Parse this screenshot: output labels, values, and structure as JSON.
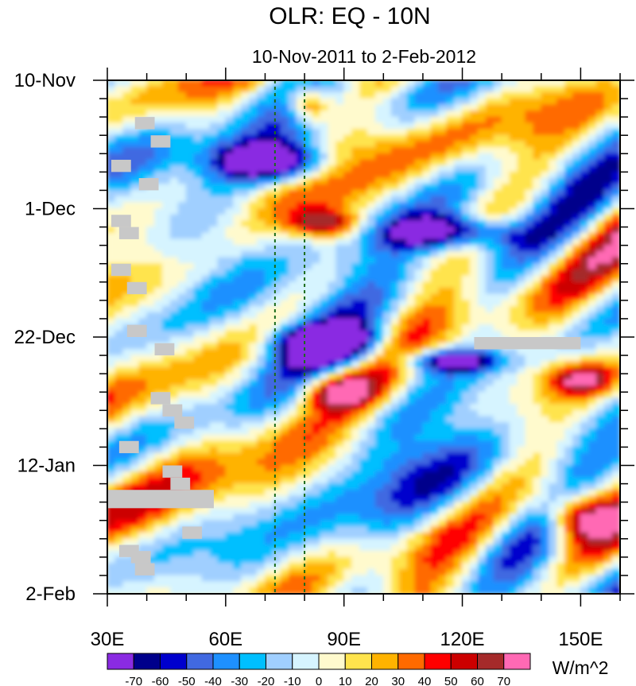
{
  "chart_data": {
    "type": "heatmap",
    "title": "OLR: EQ - 10N",
    "subtitle": "10-Nov-2011 to 2-Feb-2012",
    "xlabel": "",
    "ylabel": "",
    "x_range": [
      30,
      160
    ],
    "x_ticks": [
      {
        "value": 30,
        "label": "30E"
      },
      {
        "value": 60,
        "label": "60E"
      },
      {
        "value": 90,
        "label": "90E"
      },
      {
        "value": 120,
        "label": "120E"
      },
      {
        "value": 150,
        "label": "150E"
      }
    ],
    "time_range_days": [
      0,
      84
    ],
    "y_ticks": [
      {
        "day": 0,
        "label": "10-Nov"
      },
      {
        "day": 21,
        "label": "1-Dec"
      },
      {
        "day": 42,
        "label": "22-Dec"
      },
      {
        "day": 63,
        "label": "12-Jan"
      },
      {
        "day": 84,
        "label": "2-Feb"
      }
    ],
    "reference_lines_lon": [
      72.5,
      80
    ],
    "colorbar": {
      "units": "W/m^2",
      "levels": [
        "-70",
        "-60",
        "-50",
        "-40",
        "-30",
        "-20",
        "-10",
        "0",
        "10",
        "20",
        "30",
        "40",
        "50",
        "60",
        "70"
      ],
      "colors": [
        "#8a2be2",
        "#00008b",
        "#0000cd",
        "#4169e1",
        "#1e90ff",
        "#00bfff",
        "#a0cfff",
        "#d6f4ff",
        "#fffacd",
        "#ffe44d",
        "#ffb300",
        "#ff6a00",
        "#ff0000",
        "#cc0000",
        "#a52a2a",
        "#ff69b4"
      ]
    },
    "features": [
      {
        "kind": "suppressed",
        "lon": [
          75,
          87
        ],
        "days": [
          1,
          7
        ],
        "value": 50,
        "label": "red patch near 80E early Nov"
      },
      {
        "kind": "enhanced",
        "lon": [
          56,
          88
        ],
        "days": [
          10,
          17
        ],
        "value": -70,
        "label": "purple MJO convection 60-85E late Nov"
      },
      {
        "kind": "suppressed",
        "lon": [
          76,
          95
        ],
        "days": [
          21,
          26
        ],
        "value": 50,
        "label": "red patch 80-95E around 1-Dec"
      },
      {
        "kind": "enhanced",
        "lon": [
          100,
          135
        ],
        "days": [
          22,
          28
        ],
        "value": -60,
        "label": "convection near 120E early Dec"
      },
      {
        "kind": "enhanced",
        "lon": [
          72,
          100
        ],
        "days": [
          40,
          46
        ],
        "value": -70,
        "label": "purple convection 80-95E near 22-Dec"
      },
      {
        "kind": "enhanced",
        "lon": [
          105,
          130
        ],
        "days": [
          44,
          48
        ],
        "value": -60,
        "label": "convection 110-125E late Dec"
      },
      {
        "kind": "suppressed",
        "lon": [
          78,
          100
        ],
        "days": [
          48,
          54
        ],
        "value": 50,
        "label": "red patch 80-95E late Dec"
      },
      {
        "kind": "suppressed",
        "lon": [
          140,
          160
        ],
        "days": [
          46,
          52
        ],
        "value": 50,
        "label": "red patch east of 150E"
      },
      {
        "kind": "suppressed",
        "lon": [
          140,
          160
        ],
        "days": [
          67,
          76
        ],
        "value": 60,
        "label": "red patch near 160E mid Jan"
      }
    ],
    "missing_data": [
      {
        "lon": [
          123,
          150
        ],
        "days": [
          42,
          44
        ],
        "label": "gray missing band near 22-Dec"
      },
      {
        "lon": [
          30,
          57
        ],
        "days": [
          67,
          70
        ],
        "label": "gray missing band near 12-Jan"
      }
    ]
  }
}
